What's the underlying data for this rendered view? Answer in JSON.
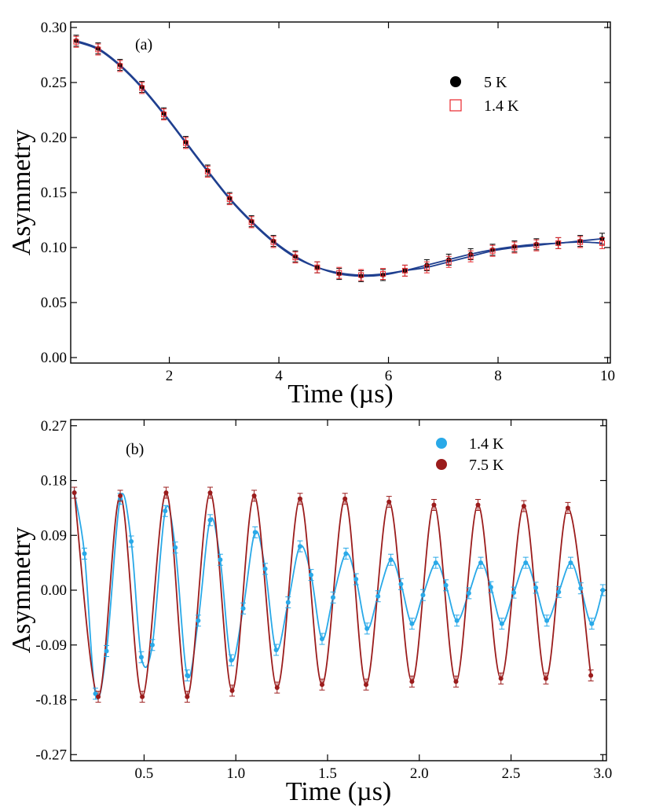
{
  "chart_data": [
    {
      "type": "scatter",
      "panel_label": "(a)",
      "xlabel": "Time (µs)",
      "ylabel": "Asymmetry",
      "xlim": [
        0.2,
        10.05
      ],
      "ylim": [
        -0.005,
        0.305
      ],
      "x_ticks": [
        2,
        4,
        6,
        8,
        10
      ],
      "y_ticks": [
        0.0,
        0.05,
        0.1,
        0.15,
        0.2,
        0.25,
        0.3
      ],
      "x_tick_labels": [
        "2",
        "4",
        "6",
        "8",
        "10"
      ],
      "y_tick_labels": [
        "0.00",
        "0.05",
        "0.10",
        "0.15",
        "0.20",
        "0.25",
        "0.30"
      ],
      "grid": false,
      "legend_position": "top-right",
      "legend": [
        {
          "label": "5 K",
          "marker": "filled-circle",
          "color": "#000000"
        },
        {
          "label": "1.4 K",
          "marker": "open-square",
          "color": "#e8262b"
        }
      ],
      "fit_color": "#1f3f8f",
      "series": [
        {
          "name": "5 K",
          "marker": "filled-circle",
          "color": "#000000",
          "x": [
            0.3,
            0.7,
            1.1,
            1.5,
            1.9,
            2.3,
            2.7,
            3.1,
            3.5,
            3.9,
            4.3,
            4.7,
            5.1,
            5.5,
            5.9,
            6.3,
            6.7,
            7.1,
            7.5,
            7.9,
            8.3,
            8.7,
            9.1,
            9.5,
            9.9
          ],
          "y": [
            0.288,
            0.281,
            0.266,
            0.246,
            0.222,
            0.196,
            0.17,
            0.145,
            0.124,
            0.106,
            0.092,
            0.082,
            0.076,
            0.074,
            0.075,
            0.079,
            0.084,
            0.089,
            0.094,
            0.098,
            0.101,
            0.103,
            0.104,
            0.106,
            0.108
          ]
        },
        {
          "name": "1.4 K",
          "marker": "open-square",
          "color": "#e8262b",
          "x": [
            0.3,
            0.7,
            1.1,
            1.5,
            1.9,
            2.3,
            2.7,
            3.1,
            3.5,
            3.9,
            4.3,
            4.7,
            5.1,
            5.5,
            5.9,
            6.3,
            6.7,
            7.1,
            7.5,
            7.9,
            8.3,
            8.7,
            9.1,
            9.5,
            9.9
          ],
          "y": [
            0.287,
            0.28,
            0.265,
            0.245,
            0.221,
            0.195,
            0.169,
            0.144,
            0.123,
            0.105,
            0.091,
            0.082,
            0.077,
            0.075,
            0.076,
            0.079,
            0.082,
            0.087,
            0.092,
            0.097,
            0.1,
            0.102,
            0.104,
            0.105,
            0.104
          ]
        }
      ]
    },
    {
      "type": "scatter",
      "panel_label": "(b)",
      "xlabel": "Time (µs)",
      "ylabel": "Asymmetry",
      "xlim": [
        0.1,
        3.02
      ],
      "ylim": [
        -0.28,
        0.28
      ],
      "x_ticks": [
        0.5,
        1.0,
        1.5,
        2.0,
        2.5,
        3.0
      ],
      "y_ticks": [
        -0.27,
        -0.18,
        -0.09,
        0.0,
        0.09,
        0.18,
        0.27
      ],
      "x_tick_labels": [
        "0.5",
        "1.0",
        "1.5",
        "2.0",
        "2.5",
        "3.0"
      ],
      "y_tick_labels": [
        "-0.27",
        "-0.18",
        "-0.09",
        "0.00",
        "0.09",
        "0.18",
        "0.27"
      ],
      "grid": false,
      "legend_position": "top-right",
      "legend": [
        {
          "label": "1.4 K",
          "marker": "filled-circle",
          "color": "#29a9e8"
        },
        {
          "label": "7.5 K",
          "marker": "filled-circle",
          "color": "#9b1c1c"
        }
      ],
      "series": [
        {
          "name": "1.4 K",
          "marker": "filled-circle",
          "color": "#29a9e8",
          "x": [
            0.12,
            0.175,
            0.235,
            0.295,
            0.37,
            0.43,
            0.485,
            0.545,
            0.615,
            0.67,
            0.735,
            0.795,
            0.86,
            0.915,
            0.975,
            1.04,
            1.105,
            1.16,
            1.22,
            1.285,
            1.35,
            1.41,
            1.47,
            1.53,
            1.6,
            1.655,
            1.715,
            1.775,
            1.845,
            1.9,
            1.96,
            2.02,
            2.09,
            2.145,
            2.205,
            2.27,
            2.335,
            2.39,
            2.45,
            2.515,
            2.58,
            2.635,
            2.695,
            2.76,
            2.825,
            2.88,
            2.94,
            3.0
          ],
          "y": [
            0.16,
            0.06,
            -0.17,
            -0.1,
            0.15,
            0.08,
            -0.11,
            -0.09,
            0.13,
            0.07,
            -0.14,
            -0.05,
            0.115,
            0.05,
            -0.115,
            -0.03,
            0.095,
            0.035,
            -0.098,
            -0.02,
            0.072,
            0.025,
            -0.08,
            -0.012,
            0.06,
            0.018,
            -0.063,
            -0.01,
            0.05,
            0.01,
            -0.055,
            -0.008,
            0.045,
            0.008,
            -0.05,
            -0.005,
            0.045,
            0.005,
            -0.055,
            -0.004,
            0.045,
            0.004,
            -0.05,
            -0.003,
            0.045,
            0.003,
            -0.055,
            0.0
          ]
        },
        {
          "name": "7.5 K",
          "marker": "filled-circle",
          "color": "#9b1c1c",
          "x": [
            0.12,
            0.25,
            0.37,
            0.49,
            0.62,
            0.735,
            0.86,
            0.98,
            1.1,
            1.225,
            1.35,
            1.47,
            1.595,
            1.71,
            1.835,
            1.96,
            2.08,
            2.2,
            2.32,
            2.445,
            2.57,
            2.69,
            2.81,
            2.935
          ],
          "y": [
            0.16,
            -0.175,
            0.155,
            -0.175,
            0.16,
            -0.175,
            0.16,
            -0.165,
            0.155,
            -0.16,
            0.15,
            -0.155,
            0.15,
            -0.155,
            0.145,
            -0.15,
            0.14,
            -0.15,
            0.14,
            -0.145,
            0.138,
            -0.145,
            0.135,
            -0.14
          ]
        }
      ]
    }
  ]
}
